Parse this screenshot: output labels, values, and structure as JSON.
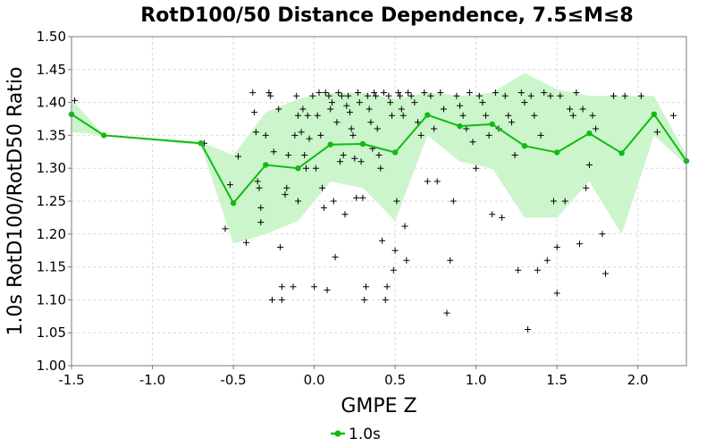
{
  "chart_data": {
    "type": "scatter",
    "title": "RotD100/50 Distance Dependence, 7.5≤M≤8",
    "xlabel": "GMPE Z",
    "ylabel": "1.0s RotD100/RotD50 Ratio",
    "xlim": [
      -1.5,
      2.3
    ],
    "ylim": [
      1.0,
      1.5
    ],
    "xticks": [
      "-1.5",
      "-1.0",
      "-0.5",
      "0.0",
      "0.5",
      "1.0",
      "1.5",
      "2.0"
    ],
    "yticks": [
      "1.00",
      "1.05",
      "1.10",
      "1.15",
      "1.20",
      "1.25",
      "1.30",
      "1.35",
      "1.40",
      "1.45",
      "1.50"
    ],
    "grid": true,
    "legend_position": "bottom-center",
    "colors": {
      "mean_line": "#11bb11",
      "band_fill": "#ccf5cc",
      "points": "#000000"
    },
    "series": [
      {
        "name": "1.0s",
        "x": [
          -1.5,
          -1.3,
          -0.7,
          -0.5,
          -0.3,
          -0.1,
          0.1,
          0.3,
          0.5,
          0.7,
          0.9,
          1.1,
          1.3,
          1.5,
          1.7,
          1.9,
          2.1,
          2.3
        ],
        "y": [
          1.382,
          1.35,
          1.338,
          1.247,
          1.305,
          1.3,
          1.336,
          1.337,
          1.324,
          1.381,
          1.364,
          1.367,
          1.334,
          1.324,
          1.353,
          1.323,
          1.382,
          1.311
        ]
      }
    ],
    "band": {
      "x": [
        -1.5,
        -1.3,
        -0.7,
        -0.5,
        -0.3,
        -0.1,
        0.1,
        0.3,
        0.5,
        0.7,
        0.9,
        1.1,
        1.3,
        1.5,
        1.7,
        1.9,
        2.1,
        2.3
      ],
      "upper": [
        1.405,
        1.35,
        1.34,
        1.32,
        1.385,
        1.405,
        1.415,
        1.415,
        1.405,
        1.415,
        1.41,
        1.415,
        1.445,
        1.42,
        1.41,
        1.41,
        1.41,
        1.32
      ],
      "lower": [
        1.355,
        1.35,
        1.335,
        1.185,
        1.2,
        1.22,
        1.28,
        1.27,
        1.22,
        1.35,
        1.31,
        1.3,
        1.225,
        1.225,
        1.28,
        1.2,
        1.35,
        1.305
      ]
    },
    "scatter_points": [
      [
        -1.48,
        1.403
      ],
      [
        -0.68,
        1.338
      ],
      [
        -0.55,
        1.208
      ],
      [
        -0.52,
        1.275
      ],
      [
        -0.47,
        1.318
      ],
      [
        -0.42,
        1.187
      ],
      [
        -0.38,
        1.415
      ],
      [
        -0.37,
        1.385
      ],
      [
        -0.36,
        1.355
      ],
      [
        -0.35,
        1.28
      ],
      [
        -0.34,
        1.27
      ],
      [
        -0.33,
        1.24
      ],
      [
        -0.33,
        1.218
      ],
      [
        -0.3,
        1.35
      ],
      [
        -0.28,
        1.415
      ],
      [
        -0.27,
        1.41
      ],
      [
        -0.26,
        1.1
      ],
      [
        -0.25,
        1.325
      ],
      [
        -0.22,
        1.39
      ],
      [
        -0.21,
        1.18
      ],
      [
        -0.2,
        1.12
      ],
      [
        -0.2,
        1.1
      ],
      [
        -0.18,
        1.26
      ],
      [
        -0.17,
        1.27
      ],
      [
        -0.16,
        1.32
      ],
      [
        -0.13,
        1.12
      ],
      [
        -0.12,
        1.35
      ],
      [
        -0.11,
        1.41
      ],
      [
        -0.1,
        1.38
      ],
      [
        -0.1,
        1.25
      ],
      [
        -0.08,
        1.355
      ],
      [
        -0.07,
        1.39
      ],
      [
        -0.06,
        1.32
      ],
      [
        -0.05,
        1.3
      ],
      [
        -0.04,
        1.38
      ],
      [
        -0.03,
        1.345
      ],
      [
        -0.01,
        1.41
      ],
      [
        0.0,
        1.12
      ],
      [
        0.01,
        1.3
      ],
      [
        0.02,
        1.38
      ],
      [
        0.03,
        1.415
      ],
      [
        0.04,
        1.35
      ],
      [
        0.05,
        1.27
      ],
      [
        0.06,
        1.24
      ],
      [
        0.07,
        1.415
      ],
      [
        0.08,
        1.115
      ],
      [
        0.09,
        1.41
      ],
      [
        0.1,
        1.39
      ],
      [
        0.11,
        1.4
      ],
      [
        0.12,
        1.25
      ],
      [
        0.13,
        1.165
      ],
      [
        0.14,
        1.37
      ],
      [
        0.15,
        1.415
      ],
      [
        0.16,
        1.31
      ],
      [
        0.17,
        1.41
      ],
      [
        0.18,
        1.32
      ],
      [
        0.19,
        1.23
      ],
      [
        0.2,
        1.395
      ],
      [
        0.21,
        1.41
      ],
      [
        0.22,
        1.385
      ],
      [
        0.23,
        1.36
      ],
      [
        0.24,
        1.35
      ],
      [
        0.25,
        1.315
      ],
      [
        0.26,
        1.255
      ],
      [
        0.27,
        1.415
      ],
      [
        0.28,
        1.4
      ],
      [
        0.29,
        1.31
      ],
      [
        0.3,
        1.255
      ],
      [
        0.31,
        1.1
      ],
      [
        0.32,
        1.12
      ],
      [
        0.33,
        1.41
      ],
      [
        0.34,
        1.39
      ],
      [
        0.35,
        1.37
      ],
      [
        0.36,
        1.33
      ],
      [
        0.37,
        1.415
      ],
      [
        0.38,
        1.41
      ],
      [
        0.39,
        1.36
      ],
      [
        0.4,
        1.32
      ],
      [
        0.41,
        1.3
      ],
      [
        0.42,
        1.19
      ],
      [
        0.43,
        1.415
      ],
      [
        0.44,
        1.1
      ],
      [
        0.45,
        1.12
      ],
      [
        0.46,
        1.41
      ],
      [
        0.47,
        1.4
      ],
      [
        0.48,
        1.38
      ],
      [
        0.49,
        1.145
      ],
      [
        0.5,
        1.175
      ],
      [
        0.51,
        1.25
      ],
      [
        0.52,
        1.415
      ],
      [
        0.53,
        1.41
      ],
      [
        0.54,
        1.39
      ],
      [
        0.55,
        1.38
      ],
      [
        0.56,
        1.212
      ],
      [
        0.57,
        1.16
      ],
      [
        0.58,
        1.415
      ],
      [
        0.6,
        1.41
      ],
      [
        0.62,
        1.4
      ],
      [
        0.64,
        1.37
      ],
      [
        0.66,
        1.35
      ],
      [
        0.68,
        1.415
      ],
      [
        0.7,
        1.28
      ],
      [
        0.72,
        1.41
      ],
      [
        0.74,
        1.36
      ],
      [
        0.76,
        1.28
      ],
      [
        0.78,
        1.415
      ],
      [
        0.8,
        1.39
      ],
      [
        0.82,
        1.08
      ],
      [
        0.84,
        1.16
      ],
      [
        0.86,
        1.25
      ],
      [
        0.88,
        1.41
      ],
      [
        0.9,
        1.395
      ],
      [
        0.92,
        1.38
      ],
      [
        0.94,
        1.36
      ],
      [
        0.96,
        1.415
      ],
      [
        0.98,
        1.34
      ],
      [
        1.0,
        1.3
      ],
      [
        1.02,
        1.41
      ],
      [
        1.04,
        1.4
      ],
      [
        1.06,
        1.38
      ],
      [
        1.08,
        1.35
      ],
      [
        1.1,
        1.23
      ],
      [
        1.12,
        1.415
      ],
      [
        1.14,
        1.36
      ],
      [
        1.16,
        1.225
      ],
      [
        1.18,
        1.41
      ],
      [
        1.2,
        1.38
      ],
      [
        1.22,
        1.37
      ],
      [
        1.24,
        1.32
      ],
      [
        1.26,
        1.145
      ],
      [
        1.28,
        1.415
      ],
      [
        1.3,
        1.4
      ],
      [
        1.32,
        1.055
      ],
      [
        1.34,
        1.41
      ],
      [
        1.36,
        1.38
      ],
      [
        1.38,
        1.145
      ],
      [
        1.4,
        1.35
      ],
      [
        1.42,
        1.415
      ],
      [
        1.44,
        1.16
      ],
      [
        1.46,
        1.41
      ],
      [
        1.48,
        1.25
      ],
      [
        1.5,
        1.18
      ],
      [
        1.5,
        1.11
      ],
      [
        1.52,
        1.41
      ],
      [
        1.55,
        1.25
      ],
      [
        1.58,
        1.39
      ],
      [
        1.6,
        1.38
      ],
      [
        1.62,
        1.415
      ],
      [
        1.64,
        1.185
      ],
      [
        1.66,
        1.39
      ],
      [
        1.68,
        1.27
      ],
      [
        1.7,
        1.305
      ],
      [
        1.72,
        1.38
      ],
      [
        1.74,
        1.36
      ],
      [
        1.78,
        1.2
      ],
      [
        1.8,
        1.14
      ],
      [
        1.85,
        1.41
      ],
      [
        1.92,
        1.41
      ],
      [
        2.02,
        1.41
      ],
      [
        2.12,
        1.355
      ],
      [
        2.22,
        1.38
      ]
    ]
  }
}
